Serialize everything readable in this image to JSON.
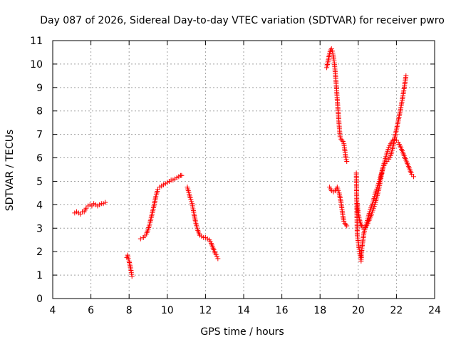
{
  "chart_data": {
    "type": "scatter",
    "title": "Day 087 of 2026, Sidereal Day-to-day VTEC variation (SDTVAR) for receiver pwro",
    "xlabel": "GPS time / hours",
    "ylabel": "SDTVAR / TECUs",
    "xlim": [
      4,
      24
    ],
    "ylim": [
      0,
      11
    ],
    "xticks": [
      "4",
      "6",
      "8",
      "10",
      "12",
      "14",
      "16",
      "18",
      "20",
      "22",
      "24"
    ],
    "yticks": [
      "0",
      "1",
      "2",
      "3",
      "4",
      "5",
      "6",
      "7",
      "8",
      "9",
      "10",
      "11"
    ],
    "grid": true,
    "marker": "+",
    "color": "#ff0000",
    "series": [
      {
        "name": "seg1",
        "x": [
          5.15,
          5.25,
          5.35,
          5.45,
          5.55
        ],
        "y": [
          3.65,
          3.7,
          3.65,
          3.6,
          3.7
        ]
      },
      {
        "name": "seg2",
        "x": [
          5.65,
          5.75,
          5.85,
          5.95,
          6.05,
          6.15,
          6.25,
          6.35,
          6.45,
          6.55,
          6.65,
          6.75
        ],
        "y": [
          3.7,
          3.85,
          3.95,
          4.0,
          3.95,
          4.05,
          4.0,
          3.95,
          4.0,
          4.05,
          4.05,
          4.1
        ]
      },
      {
        "name": "seg3",
        "x": [
          7.88,
          7.92,
          7.96,
          8.0,
          8.05,
          8.1,
          8.15
        ],
        "y": [
          1.75,
          1.85,
          1.7,
          1.6,
          1.4,
          1.2,
          0.95
        ]
      },
      {
        "name": "seg4",
        "x": [
          8.6,
          8.75,
          8.9,
          9.0,
          9.1,
          9.2,
          9.3,
          9.4,
          9.5,
          9.6,
          9.7,
          9.8,
          9.9,
          10.0,
          10.1,
          10.2,
          10.3,
          10.4,
          10.5,
          10.6,
          10.7,
          10.75
        ],
        "y": [
          2.55,
          2.6,
          2.75,
          2.95,
          3.25,
          3.6,
          3.95,
          4.35,
          4.65,
          4.75,
          4.8,
          4.85,
          4.9,
          4.95,
          5.0,
          5.05,
          5.05,
          5.1,
          5.15,
          5.2,
          5.25,
          5.25
        ]
      },
      {
        "name": "seg5",
        "x": [
          11.05,
          11.1,
          11.15,
          11.2,
          11.3,
          11.4,
          11.5,
          11.6,
          11.7,
          11.8,
          11.9,
          12.0,
          12.1,
          12.2,
          12.3,
          12.4,
          12.5,
          12.6,
          12.65
        ],
        "y": [
          4.75,
          4.6,
          4.45,
          4.3,
          4.05,
          3.6,
          3.2,
          2.9,
          2.7,
          2.65,
          2.6,
          2.6,
          2.55,
          2.5,
          2.35,
          2.15,
          1.95,
          1.8,
          1.7
        ]
      },
      {
        "name": "seg6",
        "x": [
          18.35,
          18.4,
          18.45,
          18.5,
          18.55,
          18.6,
          18.65,
          18.7,
          18.75,
          18.8,
          18.85,
          18.9,
          18.95,
          19.0,
          19.05,
          19.1,
          19.15,
          19.2,
          19.25,
          19.3,
          19.35,
          19.4
        ],
        "y": [
          9.85,
          10.05,
          10.25,
          10.45,
          10.6,
          10.65,
          10.55,
          10.3,
          10.05,
          9.6,
          9.1,
          8.5,
          7.95,
          7.4,
          6.9,
          6.8,
          6.75,
          6.7,
          6.6,
          6.3,
          6.0,
          5.85
        ]
      },
      {
        "name": "seg7",
        "x": [
          18.5,
          18.6,
          18.7,
          18.8,
          18.9,
          18.95,
          19.0,
          19.05,
          19.1,
          19.15,
          19.2,
          19.25,
          19.3,
          19.35,
          19.4
        ],
        "y": [
          4.75,
          4.6,
          4.55,
          4.6,
          4.75,
          4.6,
          4.5,
          4.3,
          4.1,
          3.8,
          3.5,
          3.3,
          3.2,
          3.15,
          3.1
        ]
      },
      {
        "name": "seg8",
        "x": [
          19.9,
          19.95,
          20.0,
          20.05,
          20.1,
          20.15,
          20.2,
          20.3,
          20.4,
          20.5,
          20.6,
          20.7,
          20.8,
          20.9,
          21.0,
          21.1,
          21.2,
          21.3,
          21.4,
          21.5,
          21.6,
          21.7,
          21.8,
          21.9,
          22.0,
          22.1,
          22.2,
          22.3,
          22.4,
          22.5,
          22.6,
          22.7,
          22.8,
          22.9
        ],
        "y": [
          5.35,
          2.7,
          2.4,
          2.1,
          1.85,
          1.6,
          2.2,
          2.8,
          3.1,
          3.4,
          3.7,
          3.95,
          4.2,
          4.5,
          4.75,
          5.0,
          5.3,
          5.6,
          5.9,
          6.2,
          6.45,
          6.6,
          6.75,
          6.8,
          6.75,
          6.65,
          6.5,
          6.3,
          6.1,
          5.9,
          5.7,
          5.5,
          5.3,
          5.2
        ]
      },
      {
        "name": "seg9",
        "x": [
          19.95,
          20.0,
          20.1,
          20.2,
          20.3,
          20.4,
          20.5,
          20.6,
          20.7,
          20.8,
          20.9,
          21.0,
          21.1,
          21.2,
          21.3,
          21.4,
          21.5,
          21.6,
          21.7,
          21.8,
          21.9,
          22.0,
          22.1,
          22.2,
          22.3,
          22.4,
          22.5
        ],
        "y": [
          4.05,
          3.6,
          3.25,
          3.05,
          2.95,
          3.05,
          3.2,
          3.4,
          3.6,
          3.85,
          4.1,
          4.4,
          4.75,
          5.2,
          5.6,
          5.75,
          5.85,
          5.95,
          6.1,
          6.4,
          6.8,
          7.2,
          7.6,
          8.0,
          8.45,
          8.95,
          9.5
        ]
      }
    ]
  }
}
